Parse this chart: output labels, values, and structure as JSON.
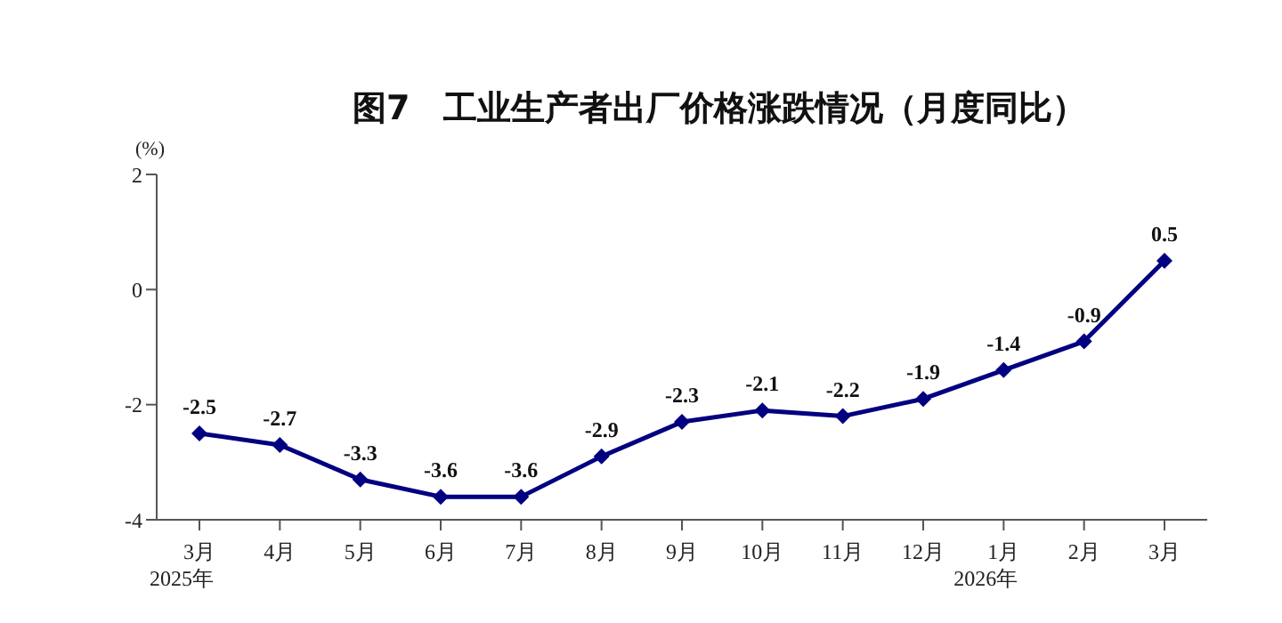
{
  "chart_data": {
    "type": "line",
    "title": "图7　工业生产者出厂价格涨跌情况（月度同比）",
    "ylabel": "(%)",
    "categories": [
      "3月\n2025年",
      "4月",
      "5月",
      "6月",
      "7月",
      "8月",
      "9月",
      "10月",
      "11月",
      "12月",
      "1月\n2026年",
      "2月",
      "3月"
    ],
    "series": [
      {
        "color": "#000080",
        "values": [
          -2.5,
          -2.7,
          -3.3,
          -3.6,
          -3.6,
          -2.9,
          -2.3,
          -2.1,
          -2.2,
          -1.9,
          -1.4,
          -0.9,
          0.5
        ]
      }
    ],
    "ylim": [
      -4,
      2
    ],
    "yticks": [
      -4,
      -2,
      0,
      2
    ],
    "grid": false,
    "marker": "diamond",
    "line_style": "solid",
    "data_labels": true
  }
}
